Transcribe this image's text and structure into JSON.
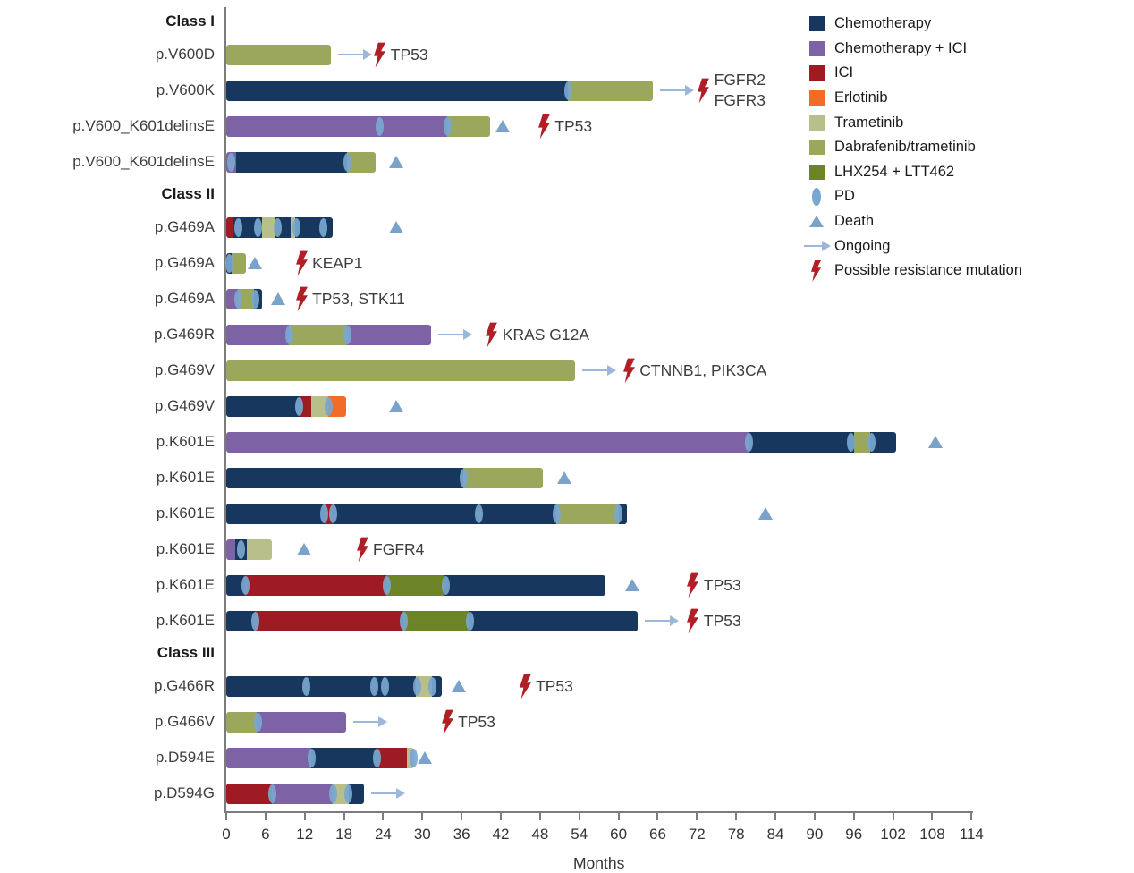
{
  "legend": {
    "items": [
      {
        "key": "chemotherapy",
        "label": "Chemotherapy",
        "swatch": "square",
        "color": "#17375e"
      },
      {
        "key": "chemo_ici",
        "label": "Chemotherapy + ICI",
        "swatch": "square",
        "color": "#7d63a6"
      },
      {
        "key": "ici",
        "label": "ICI",
        "swatch": "square",
        "color": "#9e1b24"
      },
      {
        "key": "erlotinib",
        "label": "Erlotinib",
        "swatch": "square",
        "color": "#f26c27"
      },
      {
        "key": "trametinib",
        "label": "Trametinib",
        "swatch": "square",
        "color": "#b8bf8b"
      },
      {
        "key": "dabrafenib_trametinib",
        "label": "Dabrafenib/trametinib",
        "swatch": "square",
        "color": "#9aa75c"
      },
      {
        "key": "lhx254_ltt462",
        "label": "LHX254 + LTT462",
        "swatch": "square",
        "color": "#6d8426"
      },
      {
        "key": "pd",
        "label": "PD",
        "swatch": "ellipse",
        "color": "#79a7cf"
      },
      {
        "key": "death",
        "label": "Death",
        "swatch": "triangle",
        "color": "#7ba3c9"
      },
      {
        "key": "ongoing",
        "label": "Ongoing",
        "swatch": "arrow",
        "color": "#9cb8d8"
      },
      {
        "key": "resistance",
        "label": "Possible resistance mutation",
        "swatch": "bolt",
        "color": "#b01f26"
      }
    ]
  },
  "chart_data": {
    "type": "swimmer",
    "xlabel": "Months",
    "x_min": 0,
    "x_max": 114,
    "x_tick_step": 6,
    "grid": false,
    "colors": {
      "chemotherapy": "#17375e",
      "chemo_ici": "#7d63a6",
      "ici": "#9e1b24",
      "erlotinib": "#f26c27",
      "trametinib": "#b8bf8b",
      "dabrafenib_trametinib": "#9aa75c",
      "lhx254_ltt462": "#6d8426"
    },
    "marker_colors": {
      "pd": "#79a7cf",
      "death": "#7ba3c9",
      "ongoing": "#9cb8d8",
      "bolt": "#b01f26"
    },
    "groups": [
      {
        "label": "Class I",
        "rows": [
          {
            "label": "p.V600D",
            "segments": [
              {
                "drug": "dabrafenib_trametinib",
                "start": 0,
                "end": 16
              }
            ],
            "pd": [],
            "death": null,
            "ongoing": true,
            "mutation": {
              "x": 23.5,
              "lines": [
                "TP53"
              ]
            }
          },
          {
            "label": "p.V600K",
            "segments": [
              {
                "drug": "chemotherapy",
                "start": 0,
                "end": 52.3
              },
              {
                "drug": "dabrafenib_trametinib",
                "start": 52.3,
                "end": 65.3
              }
            ],
            "pd": [
              52.3
            ],
            "death": null,
            "ongoing": true,
            "mutation": {
              "x": 73,
              "lines": [
                "FGFR2",
                "FGFR3"
              ]
            }
          },
          {
            "label": "p.V600_K601delinsE",
            "segments": [
              {
                "drug": "chemo_ici",
                "start": 0,
                "end": 33.8
              },
              {
                "drug": "dabrafenib_trametinib",
                "start": 33.8,
                "end": 40.4
              }
            ],
            "pd": [
              23.5,
              33.8
            ],
            "death": 42.4,
            "ongoing": false,
            "mutation": {
              "x": 48.6,
              "lines": [
                "TP53"
              ]
            }
          },
          {
            "label": "p.V600_K601delinsE",
            "segments": [
              {
                "drug": "chemo_ici",
                "start": 0,
                "end": 1.5
              },
              {
                "drug": "chemotherapy",
                "start": 1.5,
                "end": 18.5
              },
              {
                "drug": "dabrafenib_trametinib",
                "start": 18.5,
                "end": 22.8
              }
            ],
            "pd": [
              0.8,
              18.5
            ],
            "death": 26,
            "ongoing": false,
            "mutation": null
          }
        ]
      },
      {
        "label": "Class II",
        "rows": [
          {
            "label": "p.G469A",
            "segments": [
              {
                "drug": "ici",
                "start": 0,
                "end": 1
              },
              {
                "drug": "chemotherapy",
                "start": 1,
                "end": 5.5
              },
              {
                "drug": "trametinib",
                "start": 5.5,
                "end": 7.5
              },
              {
                "drug": "chemotherapy",
                "start": 7.5,
                "end": 9.8
              },
              {
                "drug": "trametinib",
                "start": 9.8,
                "end": 10.5
              },
              {
                "drug": "chemotherapy",
                "start": 10.5,
                "end": 16.3
              }
            ],
            "pd": [
              1.8,
              4.8,
              7.9,
              10.8,
              14.8
            ],
            "death": 26,
            "ongoing": false,
            "mutation": null
          },
          {
            "label": "p.G469A",
            "segments": [
              {
                "drug": "chemotherapy",
                "start": 0,
                "end": 0.8
              },
              {
                "drug": "dabrafenib_trametinib",
                "start": 0.8,
                "end": 3
              }
            ],
            "pd": [
              0.5
            ],
            "death": 4.5,
            "ongoing": false,
            "mutation": {
              "x": 11.5,
              "lines": [
                "KEAP1"
              ]
            }
          },
          {
            "label": "p.G469A",
            "segments": [
              {
                "drug": "chemo_ici",
                "start": 0,
                "end": 1.8
              },
              {
                "drug": "dabrafenib_trametinib",
                "start": 1.8,
                "end": 4.3
              },
              {
                "drug": "chemotherapy",
                "start": 4.3,
                "end": 5.5
              }
            ],
            "pd": [
              1.8,
              4.5
            ],
            "death": 8,
            "ongoing": false,
            "mutation": {
              "x": 11.5,
              "lines": [
                "TP53, STK11"
              ]
            }
          },
          {
            "label": "p.G469R",
            "segments": [
              {
                "drug": "chemo_ici",
                "start": 0,
                "end": 9.6
              },
              {
                "drug": "dabrafenib_trametinib",
                "start": 9.6,
                "end": 18.5
              },
              {
                "drug": "chemo_ici",
                "start": 18.5,
                "end": 31.3
              }
            ],
            "pd": [
              9.6,
              18.5
            ],
            "death": null,
            "ongoing": true,
            "mutation": {
              "x": 40.6,
              "lines": [
                "KRAS G12A"
              ]
            }
          },
          {
            "label": "p.G469V",
            "segments": [
              {
                "drug": "dabrafenib_trametinib",
                "start": 0,
                "end": 53.4
              }
            ],
            "pd": [],
            "death": null,
            "ongoing": true,
            "mutation": {
              "x": 61.6,
              "lines": [
                "CTNNB1, PIK3CA"
              ]
            }
          },
          {
            "label": "p.G469V",
            "segments": [
              {
                "drug": "chemotherapy",
                "start": 0,
                "end": 11.2
              },
              {
                "drug": "ici",
                "start": 11.2,
                "end": 13
              },
              {
                "drug": "trametinib",
                "start": 13,
                "end": 15.6
              },
              {
                "drug": "erlotinib",
                "start": 15.6,
                "end": 18.3
              }
            ],
            "pd": [
              11.2,
              15.6
            ],
            "death": 26,
            "ongoing": false,
            "mutation": null
          },
          {
            "label": "p.K601E",
            "segments": [
              {
                "drug": "chemo_ici",
                "start": 0,
                "end": 80
              },
              {
                "drug": "chemotherapy",
                "start": 80,
                "end": 96
              },
              {
                "drug": "dabrafenib_trametinib",
                "start": 96,
                "end": 98.5
              },
              {
                "drug": "chemotherapy",
                "start": 98.5,
                "end": 102.5
              }
            ],
            "pd": [
              80,
              95.5,
              98.7
            ],
            "death": 108.5,
            "ongoing": false,
            "mutation": null
          },
          {
            "label": "p.K601E",
            "segments": [
              {
                "drug": "chemotherapy",
                "start": 0,
                "end": 36.3
              },
              {
                "drug": "dabrafenib_trametinib",
                "start": 36.3,
                "end": 48.4
              }
            ],
            "pd": [
              36.3
            ],
            "death": 51.8,
            "ongoing": false,
            "mutation": null
          },
          {
            "label": "p.K601E",
            "segments": [
              {
                "drug": "chemotherapy",
                "start": 0,
                "end": 15
              },
              {
                "drug": "ici",
                "start": 15,
                "end": 16.3
              },
              {
                "drug": "chemotherapy",
                "start": 16.3,
                "end": 50.5
              },
              {
                "drug": "dabrafenib_trametinib",
                "start": 50.5,
                "end": 60
              },
              {
                "drug": "chemotherapy",
                "start": 60,
                "end": 61.3
              }
            ],
            "pd": [
              15,
              16.3,
              38.6,
              50.5,
              60
            ],
            "death": 82.6,
            "ongoing": false,
            "mutation": null
          },
          {
            "label": "p.K601E",
            "segments": [
              {
                "drug": "chemo_ici",
                "start": 0,
                "end": 1.4
              },
              {
                "drug": "chemotherapy",
                "start": 1.4,
                "end": 3.1
              },
              {
                "drug": "trametinib",
                "start": 3.1,
                "end": 7
              }
            ],
            "pd": [
              2.2
            ],
            "death": 12,
            "ongoing": false,
            "mutation": {
              "x": 20.8,
              "lines": [
                "FGFR4"
              ]
            }
          },
          {
            "label": "p.K601E",
            "segments": [
              {
                "drug": "chemotherapy",
                "start": 0,
                "end": 2.9
              },
              {
                "drug": "ici",
                "start": 2.9,
                "end": 24.5
              },
              {
                "drug": "lhx254_ltt462",
                "start": 24.5,
                "end": 33.4
              },
              {
                "drug": "chemotherapy",
                "start": 33.4,
                "end": 58
              }
            ],
            "pd": [
              2.9,
              24.5,
              33.6
            ],
            "death": 62.2,
            "ongoing": false,
            "mutation": {
              "x": 71.4,
              "lines": [
                "TP53"
              ]
            }
          },
          {
            "label": "p.K601E",
            "segments": [
              {
                "drug": "chemotherapy",
                "start": 0,
                "end": 4.4
              },
              {
                "drug": "ici",
                "start": 4.4,
                "end": 27.1
              },
              {
                "drug": "lhx254_ltt462",
                "start": 27.1,
                "end": 37.1
              },
              {
                "drug": "chemotherapy",
                "start": 37.1,
                "end": 62.9
              }
            ],
            "pd": [
              4.4,
              27.1,
              37.3
            ],
            "death": null,
            "ongoing": true,
            "mutation": {
              "x": 71.4,
              "lines": [
                "TP53"
              ]
            }
          }
        ]
      },
      {
        "label": "Class III",
        "rows": [
          {
            "label": "p.G466R",
            "segments": [
              {
                "drug": "chemotherapy",
                "start": 0,
                "end": 29
              },
              {
                "drug": "trametinib",
                "start": 29,
                "end": 31.5
              },
              {
                "drug": "chemotherapy",
                "start": 31.5,
                "end": 33
              }
            ],
            "pd": [
              12.3,
              22.7,
              24.3,
              29.2,
              31.5
            ],
            "death": 35.7,
            "ongoing": false,
            "mutation": {
              "x": 45.7,
              "lines": [
                "TP53"
              ]
            }
          },
          {
            "label": "p.G466V",
            "segments": [
              {
                "drug": "dabrafenib_trametinib",
                "start": 0,
                "end": 4.7
              },
              {
                "drug": "chemo_ici",
                "start": 4.7,
                "end": 18.3
              }
            ],
            "pd": [
              4.8
            ],
            "death": null,
            "ongoing": true,
            "mutation": {
              "x": 33.8,
              "lines": [
                "TP53"
              ]
            }
          },
          {
            "label": "p.D594E",
            "segments": [
              {
                "drug": "chemo_ici",
                "start": 0,
                "end": 13
              },
              {
                "drug": "chemotherapy",
                "start": 13,
                "end": 23
              },
              {
                "drug": "ici",
                "start": 23,
                "end": 27.6
              },
              {
                "drug": "trametinib",
                "start": 27.6,
                "end": 28.7
              }
            ],
            "pd": [
              13,
              23,
              28.6
            ],
            "death": 30.4,
            "ongoing": false,
            "mutation": null
          },
          {
            "label": "p.D594G",
            "segments": [
              {
                "drug": "ici",
                "start": 0,
                "end": 7
              },
              {
                "drug": "chemo_ici",
                "start": 7,
                "end": 16.3
              },
              {
                "drug": "trametinib",
                "start": 16.3,
                "end": 18.7
              },
              {
                "drug": "chemotherapy",
                "start": 18.7,
                "end": 21.1
              }
            ],
            "pd": [
              7,
              16.3,
              18.7
            ],
            "death": null,
            "ongoing": true,
            "mutation": null
          }
        ]
      }
    ]
  }
}
